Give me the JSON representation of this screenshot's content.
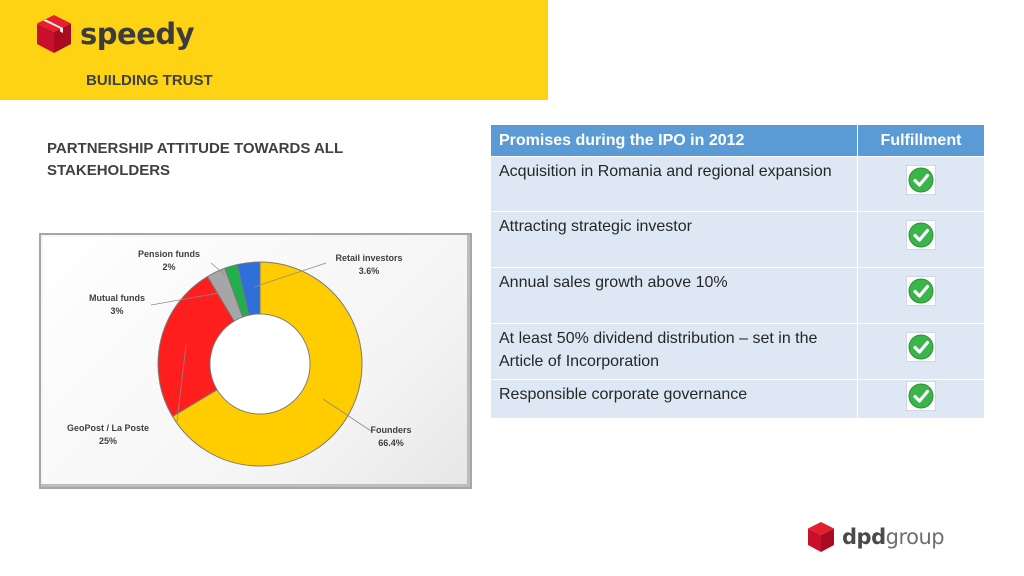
{
  "header": {
    "brand": "speedy",
    "subtitle": "BUILDING TRUST",
    "accent_color": "#FDD314"
  },
  "section_title": "PARTNERSHIP ATTITUDE TOWARDS ALL STAKEHOLDERS",
  "chart_data": {
    "type": "pie",
    "style": "doughnut",
    "slices": [
      {
        "label": "Founders",
        "value_label": "66.4%",
        "value": 66.4,
        "color": "#FFCC00"
      },
      {
        "label": "GeoPost / La Poste",
        "value_label": "25%",
        "value": 25,
        "color": "#FF1E1E"
      },
      {
        "label": "Mutual funds",
        "value_label": "3%",
        "value": 3,
        "color": "#A6A6A6"
      },
      {
        "label": "Pension funds",
        "value_label": "2%",
        "value": 2,
        "color": "#1FB04A"
      },
      {
        "label": "Retail investors",
        "value_label": "3.6%",
        "value": 3.6,
        "color": "#2F6FD8"
      }
    ]
  },
  "table": {
    "headers": [
      "Promises during the IPO in 2012",
      "Fulfillment"
    ],
    "header_color": "#5B9BD5",
    "row_color": "#DDE8F4",
    "rows": [
      {
        "promise": "Acquisition in Romania and regional expansion",
        "fulfilled": true
      },
      {
        "promise": "Attracting strategic investor",
        "fulfilled": true
      },
      {
        "promise": "Annual sales growth above 10%",
        "fulfilled": true
      },
      {
        "promise": "At least 50% dividend distribution – set in the Article of Incorporation",
        "fulfilled": true
      },
      {
        "promise": "Responsible corporate governance",
        "fulfilled": true
      }
    ],
    "check_icon": "green-check-icon"
  },
  "footer": {
    "logo_part1": "dpd",
    "logo_part2": "group"
  }
}
